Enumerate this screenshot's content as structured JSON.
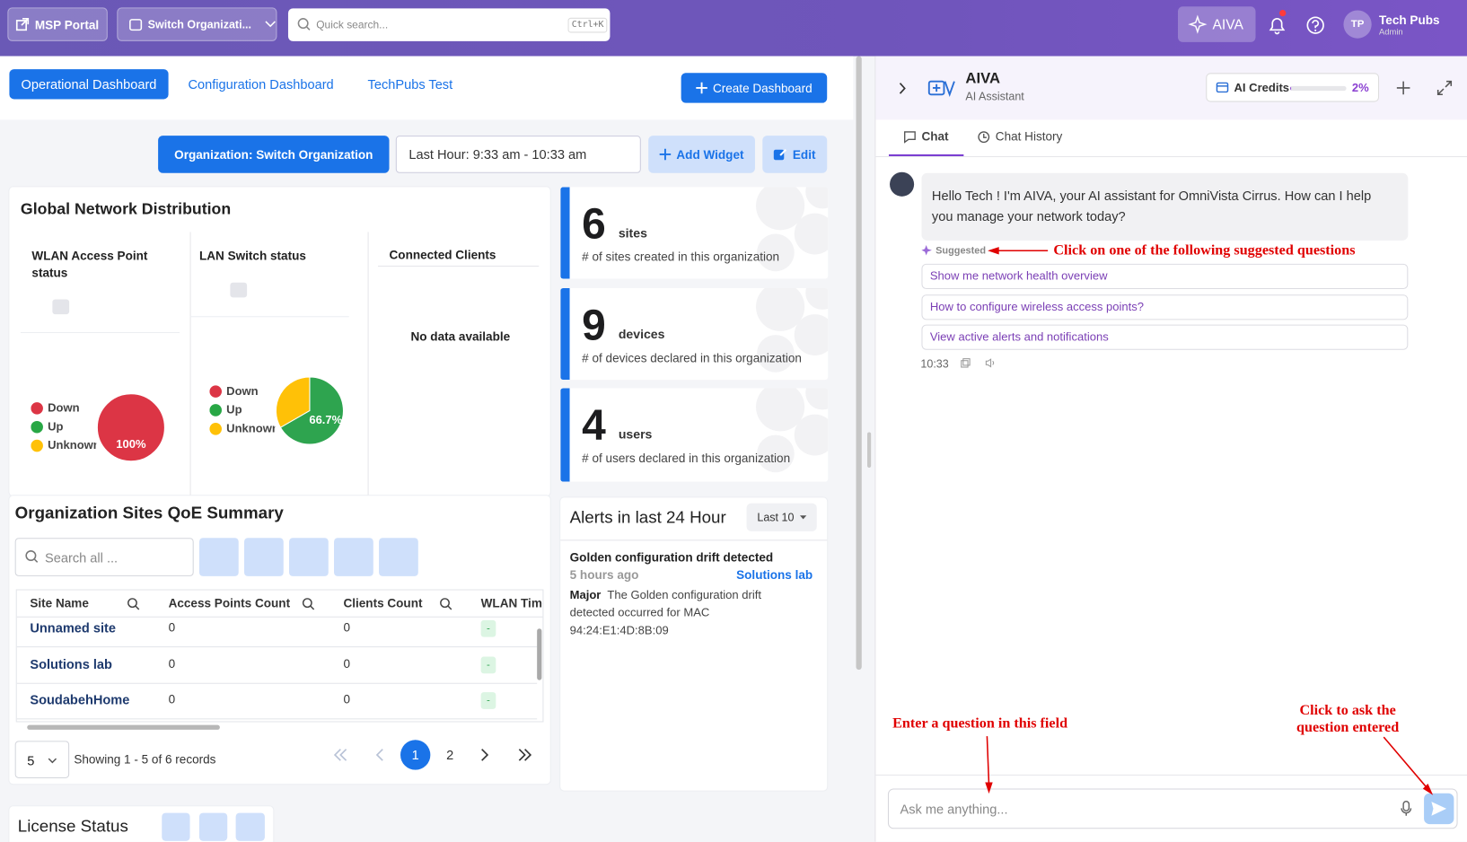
{
  "topbar": {
    "msp_portal": "MSP Portal",
    "switch_org": "Switch Organizati...",
    "search_placeholder": "Quick search...",
    "shortcut": "Ctrl+K",
    "aiva": "AIVA",
    "avatar": "TP",
    "user_name": "Tech Pubs",
    "user_role": "Admin"
  },
  "tabs": [
    "Operational Dashboard",
    "Configuration Dashboard",
    "TechPubs Test"
  ],
  "create_dashboard": "Create Dashboard",
  "toolbar": {
    "organization": "Organization: Switch Organization",
    "time_range": "Last Hour: 9:33 am - 10:33 am",
    "add_widget": "Add Widget",
    "edit": "Edit"
  },
  "network": {
    "title": "Global Network Distribution",
    "panels": [
      {
        "title": "WLAN Access Point status",
        "legend": [
          {
            "name": "Down",
            "color": "#dc3545"
          },
          {
            "name": "Up",
            "color": "#28a745"
          },
          {
            "name": "Unknown",
            "color": "#ffc107"
          }
        ],
        "slices": [
          {
            "value": 100,
            "label": "100%",
            "color": "#dc3545"
          }
        ]
      },
      {
        "title": "LAN Switch status",
        "legend": [
          {
            "name": "Down",
            "color": "#dc3545"
          },
          {
            "name": "Up",
            "color": "#28a745"
          },
          {
            "name": "Unknown",
            "color": "#ffc107"
          }
        ],
        "slices": [
          {
            "value": 66.7,
            "label": "66.7%",
            "color": "#2ea44f"
          },
          {
            "value": 33.3,
            "color": "#ffc107"
          }
        ]
      }
    ],
    "clients": {
      "title": "Connected Clients",
      "empty": "No data available"
    }
  },
  "stats": [
    {
      "value": 6,
      "unit": "sites",
      "description": "# of sites created in this organization"
    },
    {
      "value": 9,
      "unit": "devices",
      "description": "# of devices declared in this organization"
    },
    {
      "value": 4,
      "unit": "users",
      "description": "# of users declared in this organization"
    }
  ],
  "qoe": {
    "title": "Organization Sites QoE Summary",
    "search_placeholder": "Search all ...",
    "columns": [
      "Site Name",
      "Access Points Count",
      "Clients Count",
      "WLAN Time"
    ],
    "rows": [
      [
        "Unnamed site",
        0,
        0,
        "-"
      ],
      [
        "Solutions lab",
        0,
        0,
        "-"
      ],
      [
        "SoudabehHome",
        0,
        0,
        "-"
      ]
    ],
    "page_size": 5,
    "summary": "Showing 1 - 5 of 6 records",
    "pages": [
      1,
      2
    ]
  },
  "alerts": {
    "title": "Alerts in last 24 Hour",
    "filter": "Last 10",
    "items": [
      {
        "title": "Golden configuration drift detected",
        "time": "5 hours ago",
        "site": "Solutions lab",
        "severity": "Major",
        "message": "The Golden configuration drift detected occurred for MAC 94:24:E1:4D:8B:09"
      }
    ]
  },
  "license": {
    "title": "License Status"
  },
  "assistant": {
    "name": "AIVA",
    "subtitle": "AI Assistant",
    "credits_label": "AI Credits",
    "credits_used": 2,
    "credits_used_label": "2%",
    "tabs": [
      "Chat",
      "Chat History"
    ],
    "message": "Hello Tech ! I'm AIVA, your AI assistant for OmniVista Cirrus. How can I help you manage your network today?",
    "suggested_label": "Suggested",
    "suggestions": [
      "Show me network health overview",
      "How to configure wireless access points?",
      "View active alerts and notifications"
    ],
    "time": "10:33",
    "input_placeholder": "Ask me anything..."
  },
  "annotations": [
    "Click on one of the following suggested questions",
    "Enter a question in this field",
    "Click to ask the question entered"
  ]
}
